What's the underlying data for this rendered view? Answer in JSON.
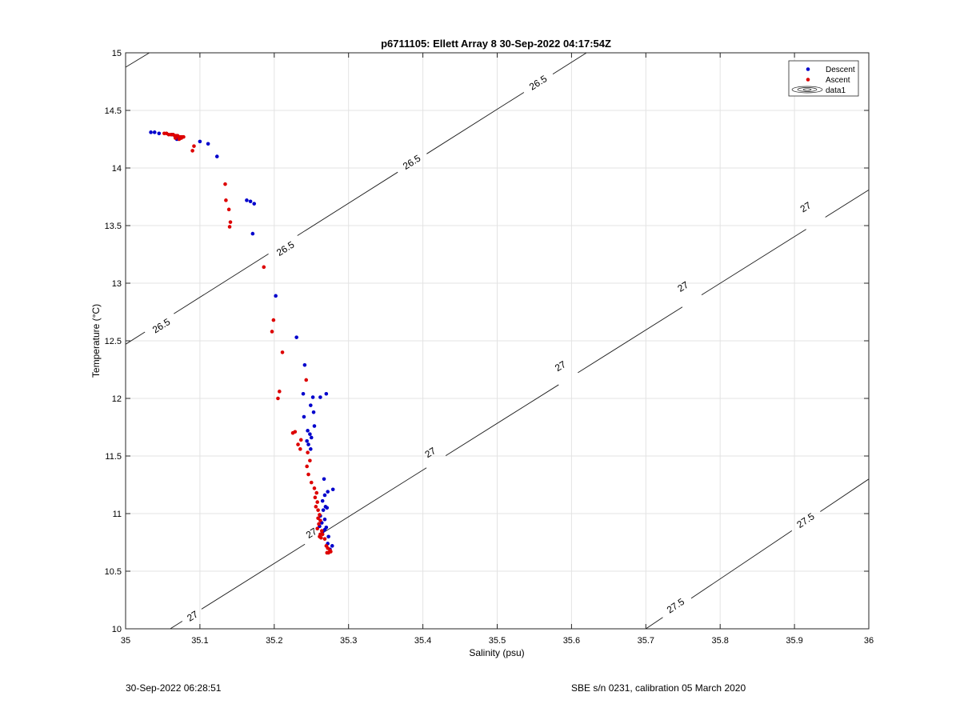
{
  "chart_data": {
    "type": "scatter",
    "title": "p6711105: Ellett Array 8 30-Sep-2022 04:17:54Z",
    "xlabel": "Salinity (psu)",
    "ylabel": "Temperature (°C)",
    "xlim": [
      35,
      36
    ],
    "ylim": [
      10,
      15
    ],
    "xticks": [
      "35",
      "35.1",
      "35.2",
      "35.3",
      "35.4",
      "35.5",
      "35.6",
      "35.7",
      "35.8",
      "35.9",
      "36"
    ],
    "yticks": [
      "10",
      "10.5",
      "11",
      "11.5",
      "12",
      "12.5",
      "13",
      "13.5",
      "14",
      "14.5",
      "15"
    ],
    "grid": true,
    "legend_position": "top-right",
    "legend": [
      "Descent",
      "Ascent",
      "data1"
    ],
    "contours": [
      {
        "level": "26.5",
        "x": [
          35,
          35.032
        ],
        "y": [
          14.875,
          15
        ],
        "labels": []
      },
      {
        "level": "26.5",
        "x": [
          35,
          36
        ],
        "y": [
          12.47,
          16.55
        ],
        "labels": [
          {
            "text": "26.5",
            "x": 35.048,
            "y": 12.63
          },
          {
            "text": "26.5",
            "x": 35.215,
            "y": 13.3
          },
          {
            "text": "26.5",
            "x": 35.385,
            "y": 14.05
          },
          {
            "text": "26.5",
            "x": 35.555,
            "y": 14.74
          }
        ]
      },
      {
        "level": "27",
        "x": [
          35.06,
          36
        ],
        "y": [
          10,
          13.81
        ],
        "labels": [
          {
            "text": "27",
            "x": 35.09,
            "y": 10.11
          },
          {
            "text": "27",
            "x": 35.25,
            "y": 10.83
          },
          {
            "text": "27",
            "x": 35.41,
            "y": 11.53
          },
          {
            "text": "27",
            "x": 35.585,
            "y": 12.28
          },
          {
            "text": "27",
            "x": 35.75,
            "y": 12.97
          },
          {
            "text": "27",
            "x": 35.915,
            "y": 13.66
          }
        ]
      },
      {
        "level": "27.5",
        "x": [
          35.7,
          36
        ],
        "y": [
          10,
          11.3
        ],
        "labels": [
          {
            "text": "27.5",
            "x": 35.74,
            "y": 10.2
          },
          {
            "text": "27.5",
            "x": 35.915,
            "y": 10.94
          }
        ]
      }
    ],
    "series": [
      {
        "name": "Descent",
        "color": "#0000cc",
        "x": [
          35.034,
          35.039,
          35.045,
          35.062,
          35.069,
          35.1,
          35.111,
          35.123,
          35.163,
          35.168,
          35.173,
          35.171,
          35.202,
          35.23,
          35.241,
          35.239,
          35.252,
          35.262,
          35.27,
          35.249,
          35.253,
          35.24,
          35.245,
          35.248,
          35.25,
          35.244,
          35.246,
          35.249,
          35.254,
          35.267,
          35.279,
          35.272,
          35.268,
          35.265,
          35.269,
          35.271,
          35.266,
          35.262,
          35.268,
          35.264,
          35.261,
          35.27,
          35.273,
          35.268,
          35.265,
          35.272,
          35.278,
          35.275
        ],
        "y": [
          14.31,
          14.31,
          14.3,
          14.29,
          14.25,
          14.23,
          14.21,
          14.1,
          13.72,
          13.71,
          13.69,
          13.43,
          12.89,
          12.53,
          12.29,
          12.04,
          12.01,
          12.01,
          12.04,
          11.94,
          11.88,
          11.84,
          11.72,
          11.69,
          11.66,
          11.63,
          11.6,
          11.56,
          11.76,
          11.3,
          11.21,
          11.19,
          11.16,
          11.11,
          11.06,
          11.05,
          11.03,
          10.98,
          10.95,
          10.92,
          10.89,
          10.88,
          10.8,
          10.86,
          10.84,
          10.74,
          10.72,
          10.69
        ]
      },
      {
        "name": "Ascent",
        "color": "#dd0000",
        "x": [
          35.052,
          35.055,
          35.058,
          35.061,
          35.064,
          35.066,
          35.068,
          35.07,
          35.072,
          35.074,
          35.076,
          35.078,
          35.067,
          35.072,
          35.075,
          35.092,
          35.09,
          35.134,
          35.135,
          35.139,
          35.141,
          35.14,
          35.186,
          35.199,
          35.197,
          35.211,
          35.207,
          35.205,
          35.243,
          35.228,
          35.225,
          35.236,
          35.232,
          35.235,
          35.245,
          35.248,
          35.244,
          35.246,
          35.25,
          35.254,
          35.257,
          35.255,
          35.258,
          35.256,
          35.259,
          35.261,
          35.259,
          35.262,
          35.26,
          35.258,
          35.264,
          35.262,
          35.261,
          35.265,
          35.263,
          35.268,
          35.27,
          35.272,
          35.275,
          35.271,
          35.273,
          35.276
        ],
        "y": [
          14.3,
          14.3,
          14.29,
          14.29,
          14.29,
          14.28,
          14.28,
          14.28,
          14.27,
          14.27,
          14.27,
          14.27,
          14.26,
          14.25,
          14.26,
          14.19,
          14.15,
          13.86,
          13.72,
          13.64,
          13.53,
          13.49,
          13.14,
          12.68,
          12.58,
          12.4,
          12.06,
          12.0,
          12.16,
          11.71,
          11.7,
          11.64,
          11.6,
          11.56,
          11.53,
          11.46,
          11.41,
          11.34,
          11.27,
          11.22,
          11.18,
          11.14,
          11.1,
          11.06,
          11.03,
          10.99,
          10.96,
          10.94,
          10.91,
          10.87,
          10.85,
          10.82,
          10.8,
          10.82,
          10.79,
          10.78,
          10.72,
          10.7,
          10.68,
          10.66,
          10.66,
          10.67
        ]
      }
    ]
  },
  "footer": {
    "left": "30-Sep-2022 06:28:51",
    "right": "SBE s/n 0231, calibration 05 March 2020"
  }
}
